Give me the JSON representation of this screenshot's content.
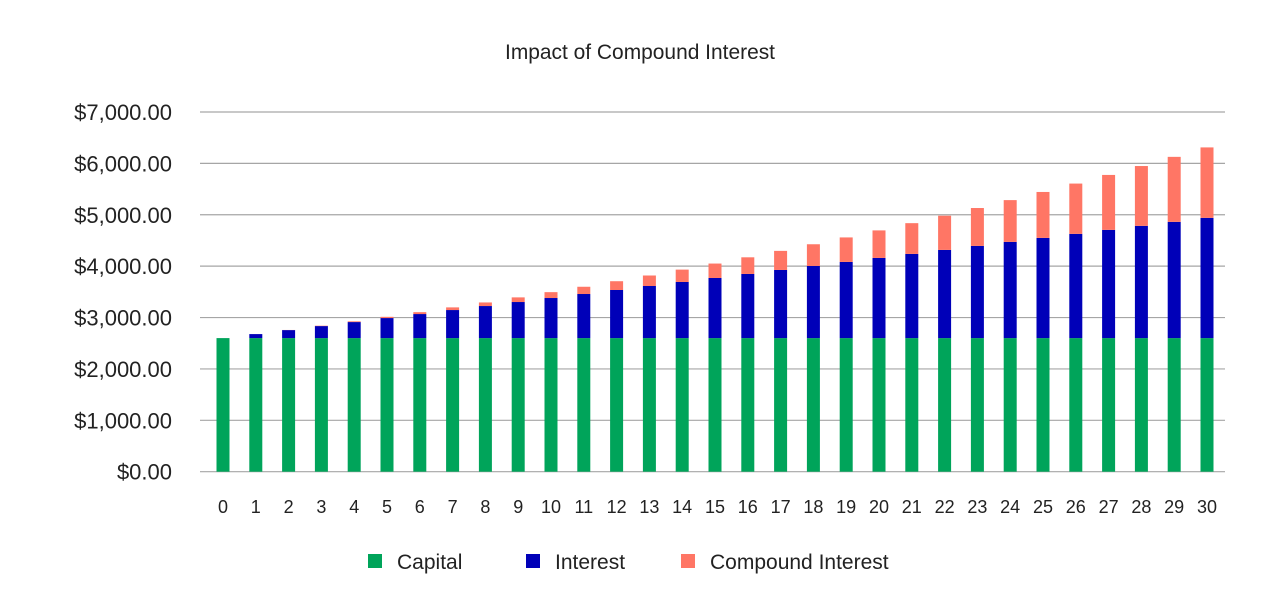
{
  "chart_data": {
    "type": "bar",
    "stacked": true,
    "title": "Impact of Compound Interest",
    "xlabel": "",
    "ylabel": "",
    "ylim": [
      0,
      7000
    ],
    "yticks": [
      "$0.00",
      "$1,000.00",
      "$2,000.00",
      "$3,000.00",
      "$4,000.00",
      "$5,000.00",
      "$6,000.00",
      "$7,000.00"
    ],
    "grid": true,
    "legend_position": "bottom",
    "categories": [
      "0",
      "1",
      "2",
      "3",
      "4",
      "5",
      "6",
      "7",
      "8",
      "9",
      "10",
      "11",
      "12",
      "13",
      "14",
      "15",
      "16",
      "17",
      "18",
      "19",
      "20",
      "21",
      "22",
      "23",
      "24",
      "25",
      "26",
      "27",
      "28",
      "29",
      "30"
    ],
    "series": [
      {
        "name": "Capital",
        "color": "#00a45a",
        "values": [
          2600,
          2600,
          2600,
          2600,
          2600,
          2600,
          2600,
          2600,
          2600,
          2600,
          2600,
          2600,
          2600,
          2600,
          2600,
          2600,
          2600,
          2600,
          2600,
          2600,
          2600,
          2600,
          2600,
          2600,
          2600,
          2600,
          2600,
          2600,
          2600,
          2600,
          2600
        ]
      },
      {
        "name": "Interest",
        "color": "#0000b8",
        "values": [
          0,
          78,
          156,
          234,
          312,
          390,
          468,
          546,
          624,
          702,
          780,
          858,
          936,
          1014,
          1092,
          1170,
          1248,
          1326,
          1404,
          1482,
          1560,
          1638,
          1716,
          1794,
          1872,
          1950,
          2028,
          2106,
          2184,
          2262,
          2340
        ]
      },
      {
        "name": "Compound Interest",
        "color": "#ff7665",
        "values": [
          0,
          0,
          2.34,
          7.09,
          14.32,
          24.11,
          36.54,
          51.67,
          69.6,
          90.41,
          114.18,
          141.01,
          170.98,
          204.19,
          240.73,
          280.71,
          324.24,
          371.4,
          422.33,
          477.12,
          535.89,
          598.77,
          665.87,
          737.33,
          813.26,
          893.82,
          979.14,
          1069.35,
          1164.61,
          1265.07,
          1370.88
        ]
      }
    ]
  }
}
